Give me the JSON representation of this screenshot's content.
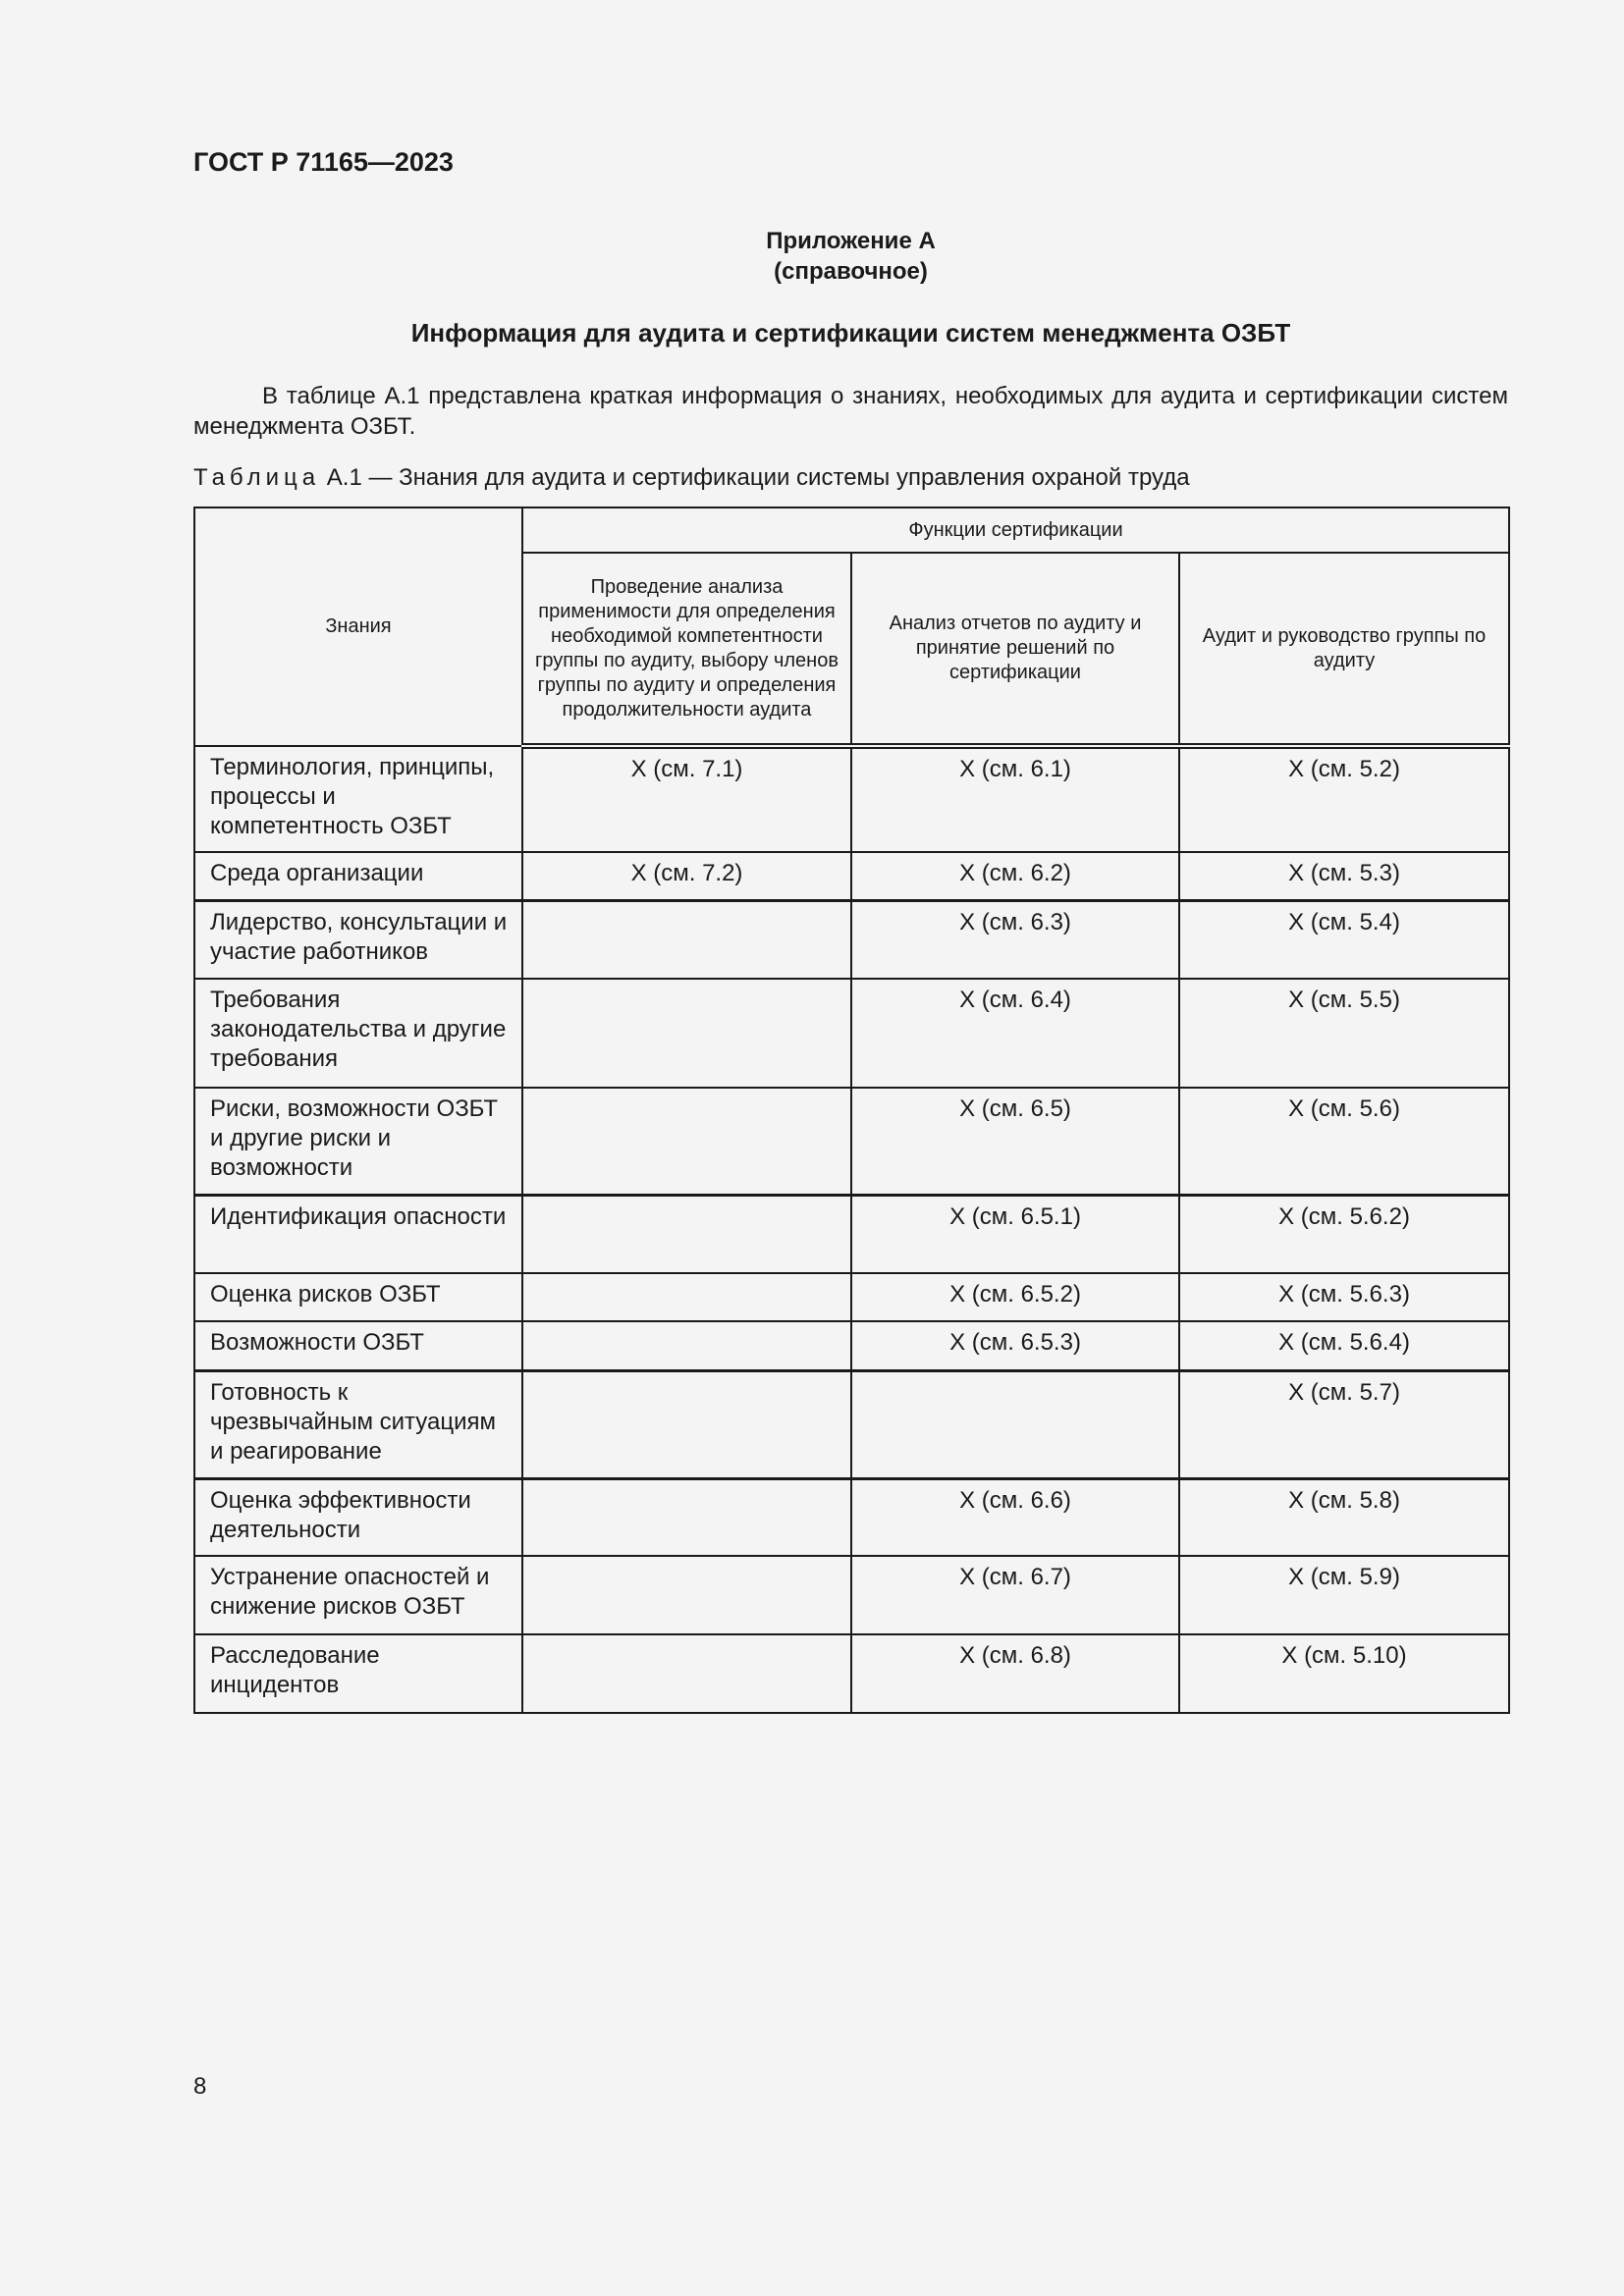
{
  "header": {
    "doc_code": "ГОСТ Р 71165—2023"
  },
  "appendix": {
    "title": "Приложение А",
    "subtitle": "(справочное)"
  },
  "heading": "Информация для аудита и сертификации систем менеджмента ОЗБТ",
  "paragraph": "В таблице А.1 представлена краткая информация о знаниях, необходимых для аудита и сертификации систем менеджмента ОЗБТ.",
  "caption": {
    "prefix": "Таблица",
    "text": "А.1 — Знания для аудита и сертификации системы управления охраной труда"
  },
  "table": {
    "col_knowledge": "Знания",
    "group_header": "Функции сертификации",
    "columns": [
      "Проведение анализа применимости для определения необходимой компетентности группы по аудиту, выбору членов группы по аудиту и определения продолжительности аудита",
      "Анализ отчетов по аудиту и принятие решений по сертификации",
      "Аудит и руководство группы по аудиту"
    ],
    "rows": [
      {
        "k": "Терминология, принципы, процессы и компетентность ОЗБТ",
        "c1": "X (см. 7.1)",
        "c2": "X (см. 6.1)",
        "c3": "X (см. 5.2)"
      },
      {
        "k": "Среда организации",
        "c1": "X (см. 7.2)",
        "c2": "X (см. 6.2)",
        "c3": "X (см. 5.3)"
      },
      {
        "k": "Лидерство, консультации и участие работников",
        "c1": "",
        "c2": "X (см. 6.3)",
        "c3": "X (см. 5.4)"
      },
      {
        "k": "Требования законодательства и другие требования",
        "c1": "",
        "c2": "X (см. 6.4)",
        "c3": "X (см. 5.5)"
      },
      {
        "k": "Риски, возможности ОЗБТ и другие риски и возможности",
        "c1": "",
        "c2": "X (см. 6.5)",
        "c3": "X (см. 5.6)"
      },
      {
        "k": "Идентификация опасности",
        "c1": "",
        "c2": "X (см. 6.5.1)",
        "c3": "X (см. 5.6.2)"
      },
      {
        "k": "Оценка рисков ОЗБТ",
        "c1": "",
        "c2": "X (см. 6.5.2)",
        "c3": "X (см. 5.6.3)"
      },
      {
        "k": "Возможности ОЗБТ",
        "c1": "",
        "c2": "X (см. 6.5.3)",
        "c3": "X (см. 5.6.4)"
      },
      {
        "k": "Готовность к чрезвычайным ситуациям и реагирование",
        "c1": "",
        "c2": "",
        "c3": "X (см. 5.7)"
      },
      {
        "k": "Оценка эффективности деятельности",
        "c1": "",
        "c2": "X (см. 6.6)",
        "c3": "X (см. 5.8)"
      },
      {
        "k": "Устранение опасностей и снижение рисков ОЗБТ",
        "c1": "",
        "c2": "X (см. 6.7)",
        "c3": "X (см. 5.9)"
      },
      {
        "k": "Расследование инцидентов",
        "c1": "",
        "c2": "X (см. 6.8)",
        "c3": "X (см. 5.10)"
      }
    ]
  },
  "page_number": "8"
}
